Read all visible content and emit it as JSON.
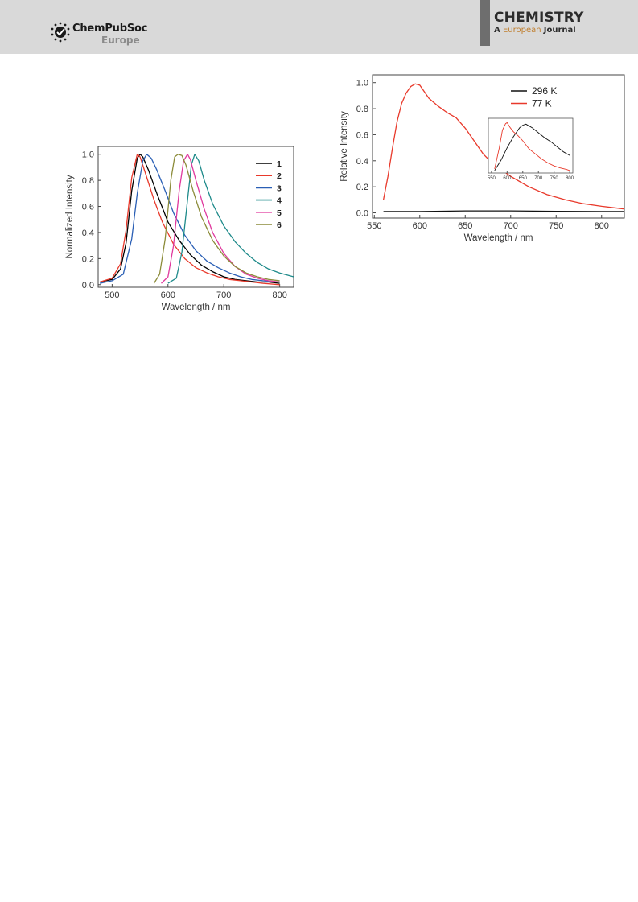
{
  "header": {
    "publisher": "ChemPubSoc",
    "publisher_sub": "Europe",
    "journal_title": "CHEMISTRY",
    "journal_sub_a": "A",
    "journal_sub_european": "European",
    "journal_sub_journal": "Journal",
    "logo_icon": "chempubsoc-star-icon"
  },
  "chart_data": [
    {
      "type": "line",
      "title": "",
      "xlabel": "Wavelength / nm",
      "ylabel": "Normalized Intensity",
      "xlim": [
        475,
        825
      ],
      "ylim": [
        -0.02,
        1.06
      ],
      "xticks": [
        500,
        600,
        700,
        800
      ],
      "yticks": [
        0.0,
        0.2,
        0.4,
        0.6,
        0.8,
        1.0
      ],
      "legend_position": "top-right",
      "series": [
        {
          "name": "1",
          "color": "#000000",
          "x": [
            478,
            500,
            515,
            525,
            535,
            545,
            550,
            555,
            565,
            580,
            600,
            620,
            640,
            660,
            680,
            700,
            720,
            740,
            760,
            780,
            800
          ],
          "y": [
            0.02,
            0.04,
            0.12,
            0.32,
            0.72,
            0.97,
            1.0,
            0.98,
            0.88,
            0.7,
            0.48,
            0.34,
            0.23,
            0.15,
            0.1,
            0.06,
            0.04,
            0.03,
            0.02,
            0.02,
            0.01
          ]
        },
        {
          "name": "2",
          "color": "#e8392b",
          "x": [
            478,
            500,
            515,
            525,
            535,
            545,
            550,
            560,
            575,
            590,
            610,
            630,
            650,
            670,
            690,
            710,
            730,
            750,
            770,
            800
          ],
          "y": [
            0.02,
            0.05,
            0.16,
            0.42,
            0.82,
            1.0,
            0.98,
            0.85,
            0.65,
            0.48,
            0.31,
            0.2,
            0.13,
            0.09,
            0.06,
            0.04,
            0.03,
            0.02,
            0.01,
            0.0
          ]
        },
        {
          "name": "3",
          "color": "#2a5fb5",
          "x": [
            478,
            500,
            520,
            535,
            545,
            555,
            562,
            570,
            580,
            595,
            610,
            630,
            650,
            670,
            690,
            710,
            730,
            750,
            770,
            800
          ],
          "y": [
            0.01,
            0.03,
            0.08,
            0.35,
            0.7,
            0.95,
            1.0,
            0.97,
            0.88,
            0.72,
            0.55,
            0.38,
            0.26,
            0.18,
            0.13,
            0.09,
            0.06,
            0.04,
            0.03,
            0.02
          ]
        },
        {
          "name": "4",
          "color": "#1e8a8a",
          "x": [
            600,
            615,
            625,
            635,
            642,
            648,
            655,
            665,
            680,
            700,
            720,
            740,
            760,
            780,
            800,
            825
          ],
          "y": [
            0.01,
            0.05,
            0.25,
            0.65,
            0.92,
            1.0,
            0.95,
            0.8,
            0.62,
            0.45,
            0.33,
            0.24,
            0.17,
            0.12,
            0.09,
            0.06
          ]
        },
        {
          "name": "5",
          "color": "#e0399e",
          "x": [
            588,
            600,
            610,
            620,
            628,
            635,
            640,
            650,
            665,
            680,
            700,
            720,
            740,
            760,
            780,
            800
          ],
          "y": [
            0.01,
            0.06,
            0.3,
            0.72,
            0.95,
            1.0,
            0.96,
            0.8,
            0.58,
            0.4,
            0.24,
            0.14,
            0.08,
            0.05,
            0.03,
            0.02
          ]
        },
        {
          "name": "6",
          "color": "#8c8c3a",
          "x": [
            575,
            585,
            595,
            605,
            612,
            618,
            625,
            632,
            645,
            660,
            680,
            700,
            720,
            740,
            760,
            780,
            800
          ],
          "y": [
            0.01,
            0.08,
            0.35,
            0.8,
            0.98,
            1.0,
            0.99,
            0.92,
            0.72,
            0.52,
            0.34,
            0.22,
            0.14,
            0.09,
            0.06,
            0.04,
            0.03
          ]
        }
      ]
    },
    {
      "type": "line",
      "title": "",
      "xlabel": "Wavelength / nm",
      "ylabel": "Relative Intensity",
      "xlim": [
        548,
        825
      ],
      "ylim": [
        -0.04,
        1.06
      ],
      "xticks": [
        550,
        600,
        650,
        700,
        750,
        800
      ],
      "yticks": [
        0.0,
        0.2,
        0.4,
        0.6,
        0.8,
        1.0
      ],
      "legend_position": "top-right",
      "series": [
        {
          "name": "296 K",
          "color": "#111111",
          "x": [
            560,
            600,
            650,
            700,
            750,
            800,
            825
          ],
          "y": [
            0.01,
            0.01,
            0.015,
            0.015,
            0.012,
            0.01,
            0.01
          ]
        },
        {
          "name": "77 K",
          "color": "#e8392b",
          "x": [
            560,
            565,
            570,
            575,
            580,
            585,
            590,
            595,
            600,
            610,
            620,
            630,
            640,
            650,
            660,
            670,
            680,
            700,
            720,
            740,
            760,
            780,
            800,
            825
          ],
          "y": [
            0.1,
            0.28,
            0.5,
            0.7,
            0.84,
            0.92,
            0.97,
            0.99,
            0.98,
            0.88,
            0.82,
            0.77,
            0.73,
            0.65,
            0.55,
            0.45,
            0.38,
            0.28,
            0.2,
            0.14,
            0.1,
            0.07,
            0.05,
            0.03
          ]
        }
      ],
      "inset": {
        "xlim": [
          540,
          810
        ],
        "xticks": [
          550,
          600,
          650,
          700,
          750,
          800
        ],
        "series": [
          {
            "name": "296 K",
            "color": "#111111",
            "x": [
              560,
              580,
              600,
              620,
              640,
              650,
              660,
              680,
              700,
              720,
              740,
              760,
              780,
              800
            ],
            "y": [
              0.05,
              0.25,
              0.5,
              0.72,
              0.9,
              0.95,
              0.97,
              0.9,
              0.8,
              0.7,
              0.62,
              0.52,
              0.42,
              0.35
            ]
          },
          {
            "name": "77 K",
            "color": "#e8392b",
            "x": [
              560,
              575,
              585,
              595,
              600,
              610,
              620,
              635,
              650,
              670,
              690,
              710,
              730,
              750,
              770,
              790,
              800
            ],
            "y": [
              0.08,
              0.5,
              0.85,
              0.98,
              1.0,
              0.9,
              0.82,
              0.74,
              0.64,
              0.48,
              0.38,
              0.28,
              0.2,
              0.14,
              0.1,
              0.07,
              0.05
            ]
          }
        ]
      }
    }
  ]
}
